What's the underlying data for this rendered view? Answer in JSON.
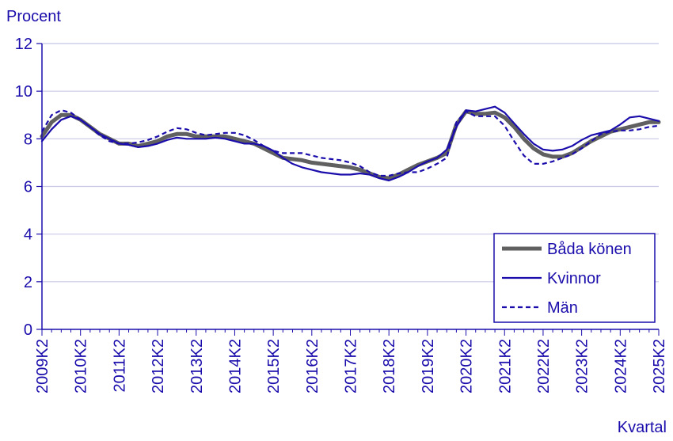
{
  "chart_data": {
    "type": "line",
    "ylabel": "Procent",
    "xlabel": "Kvartal",
    "ylim": [
      0,
      12
    ],
    "yticks": [
      0,
      2,
      4,
      6,
      8,
      10,
      12
    ],
    "grid": "horizontal",
    "legend_position": "bottom-right",
    "x_tick_labels": [
      "2009K2",
      "2010K2",
      "2011K2",
      "2012K2",
      "2013K2",
      "2014K2",
      "2015K2",
      "2016K2",
      "2017K2",
      "2018K2",
      "2019K2",
      "2020K2",
      "2021K2",
      "2022K2",
      "2023K2",
      "2024K2",
      "2025K2"
    ],
    "colors": {
      "text": "#1a0dab",
      "axis": "#1a0dab",
      "grid": "#c8c8e6"
    },
    "series": [
      {
        "name": "Båda könen",
        "color": "#606060",
        "style": "solid-thick",
        "values": [
          8.1,
          8.7,
          9.0,
          9.0,
          8.8,
          8.5,
          8.2,
          8.0,
          7.8,
          7.8,
          7.7,
          7.8,
          7.9,
          8.1,
          8.2,
          8.2,
          8.1,
          8.1,
          8.1,
          8.1,
          8.0,
          7.9,
          7.8,
          7.6,
          7.4,
          7.2,
          7.15,
          7.1,
          7.0,
          6.95,
          6.9,
          6.85,
          6.8,
          6.7,
          6.55,
          6.4,
          6.35,
          6.5,
          6.7,
          6.9,
          7.05,
          7.2,
          7.4,
          8.6,
          9.15,
          9.05,
          9.05,
          9.1,
          8.9,
          8.5,
          8.0,
          7.6,
          7.35,
          7.25,
          7.25,
          7.4,
          7.65,
          7.9,
          8.1,
          8.3,
          8.4,
          8.5,
          8.6,
          8.7,
          8.7
        ]
      },
      {
        "name": "Kvinnor",
        "color": "#1a0dab",
        "style": "solid",
        "values": [
          7.9,
          8.4,
          8.8,
          8.95,
          8.8,
          8.5,
          8.2,
          8.0,
          7.8,
          7.75,
          7.65,
          7.7,
          7.8,
          7.95,
          8.05,
          8.0,
          8.0,
          8.0,
          8.05,
          8.0,
          7.9,
          7.8,
          7.8,
          7.7,
          7.5,
          7.2,
          6.95,
          6.8,
          6.7,
          6.6,
          6.55,
          6.5,
          6.5,
          6.55,
          6.5,
          6.35,
          6.25,
          6.4,
          6.6,
          6.85,
          7.05,
          7.2,
          7.55,
          8.5,
          9.2,
          9.15,
          9.25,
          9.35,
          9.1,
          8.65,
          8.2,
          7.8,
          7.55,
          7.5,
          7.55,
          7.7,
          7.95,
          8.15,
          8.25,
          8.35,
          8.6,
          8.9,
          8.95,
          8.85,
          8.75
        ]
      },
      {
        "name": "Män",
        "color": "#1a0dab",
        "style": "dashed",
        "values": [
          8.3,
          9.0,
          9.2,
          9.1,
          8.8,
          8.5,
          8.15,
          7.9,
          7.8,
          7.8,
          7.85,
          7.95,
          8.1,
          8.3,
          8.45,
          8.4,
          8.25,
          8.15,
          8.2,
          8.25,
          8.25,
          8.15,
          7.95,
          7.7,
          7.5,
          7.4,
          7.4,
          7.4,
          7.3,
          7.2,
          7.15,
          7.1,
          7.0,
          6.85,
          6.6,
          6.45,
          6.45,
          6.55,
          6.6,
          6.6,
          6.75,
          6.95,
          7.2,
          8.7,
          9.15,
          8.95,
          8.95,
          8.95,
          8.55,
          7.9,
          7.3,
          6.95,
          6.95,
          7.05,
          7.2,
          7.35,
          7.6,
          7.9,
          8.2,
          8.3,
          8.35,
          8.35,
          8.4,
          8.5,
          8.55
        ]
      }
    ]
  }
}
